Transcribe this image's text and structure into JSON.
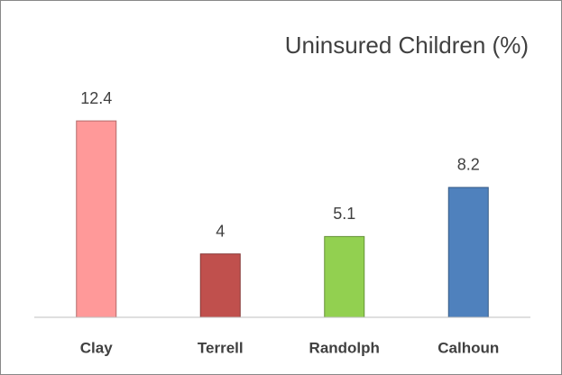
{
  "chart_data": {
    "type": "bar",
    "title": "Uninsured Children (%)",
    "categories": [
      "Clay",
      "Terrell",
      "Randolph",
      "Calhoun"
    ],
    "values": [
      12.4,
      4,
      5.1,
      8.2
    ],
    "colors": [
      "#ff9999",
      "#c0504d",
      "#92d050",
      "#4f81bd"
    ],
    "ylim": [
      0,
      14
    ]
  }
}
